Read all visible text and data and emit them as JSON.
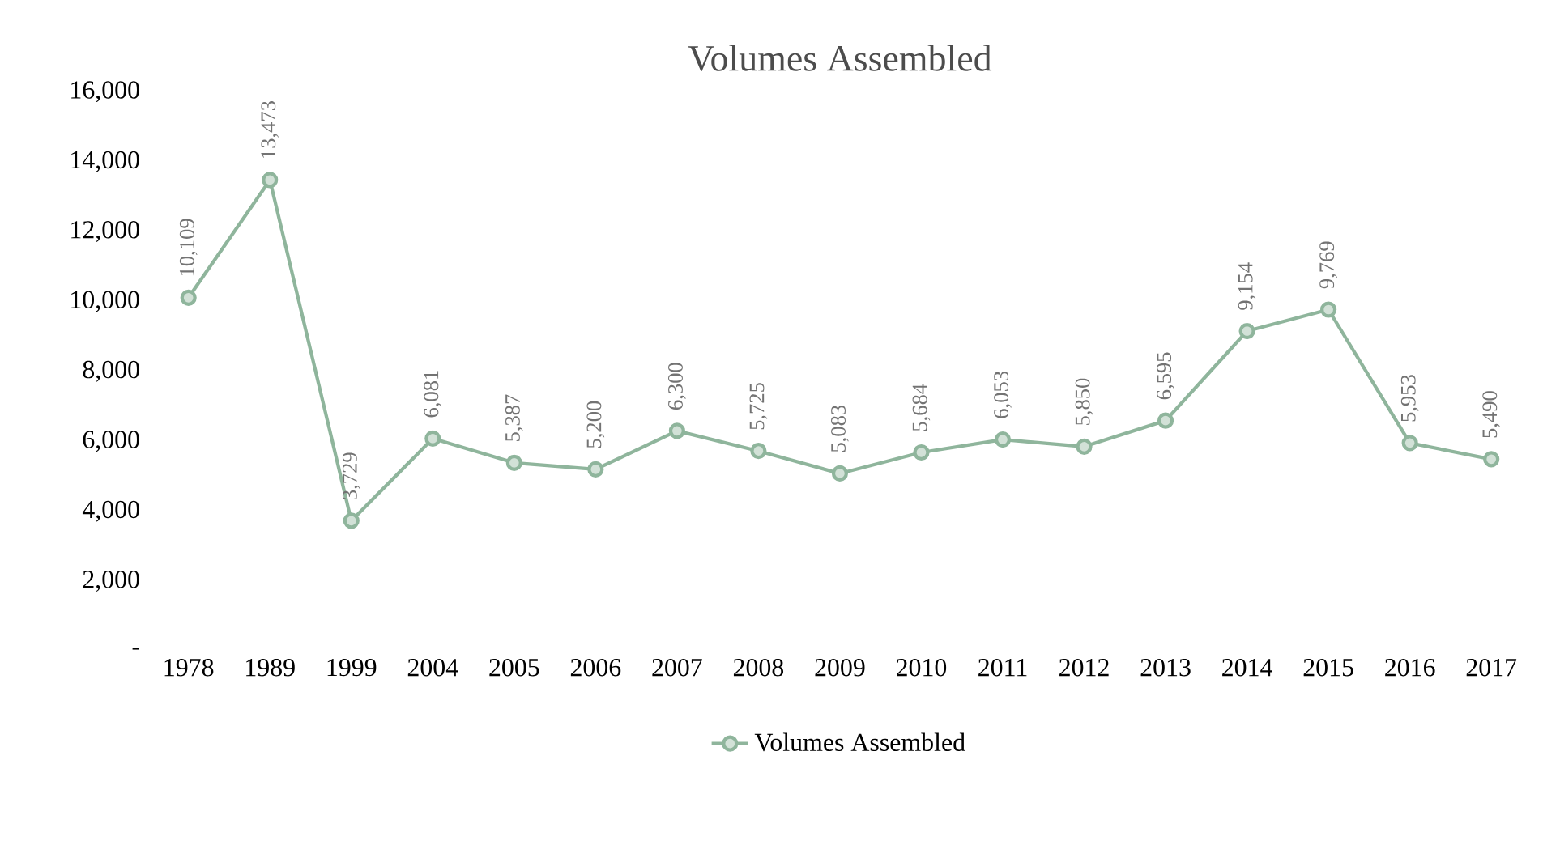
{
  "chart_data": {
    "type": "line",
    "title": "Volumes Assembled",
    "categories": [
      "1978",
      "1989",
      "1999",
      "2004",
      "2005",
      "2006",
      "2007",
      "2008",
      "2009",
      "2010",
      "2011",
      "2012",
      "2013",
      "2014",
      "2015",
      "2016",
      "2017"
    ],
    "series": [
      {
        "name": "Volumes Assembled",
        "color": "#8fb59c",
        "values": [
          10109,
          13473,
          3729,
          6081,
          5387,
          5200,
          6300,
          5725,
          5083,
          5684,
          6053,
          5850,
          6595,
          9154,
          9769,
          5953,
          5490
        ],
        "value_labels": [
          "10,109",
          "13,473",
          "3,729",
          "6,081",
          "5,387",
          "5,200",
          "6,300",
          "5,725",
          "5,083",
          "5,684",
          "6,053",
          "5,850",
          "6,595",
          "9,154",
          "9,769",
          "5,953",
          "5,490"
        ]
      }
    ],
    "ylim": [
      0,
      16000
    ],
    "yticks": [
      {
        "value": 0,
        "label": "-"
      },
      {
        "value": 2000,
        "label": "2,000"
      },
      {
        "value": 4000,
        "label": "4,000"
      },
      {
        "value": 6000,
        "label": "6,000"
      },
      {
        "value": 8000,
        "label": "8,000"
      },
      {
        "value": 10000,
        "label": "10,000"
      },
      {
        "value": 12000,
        "label": "12,000"
      },
      {
        "value": 14000,
        "label": "14,000"
      },
      {
        "value": 16000,
        "label": "16,000"
      }
    ],
    "marker": "circle",
    "legend": "bottom",
    "grid": false
  }
}
